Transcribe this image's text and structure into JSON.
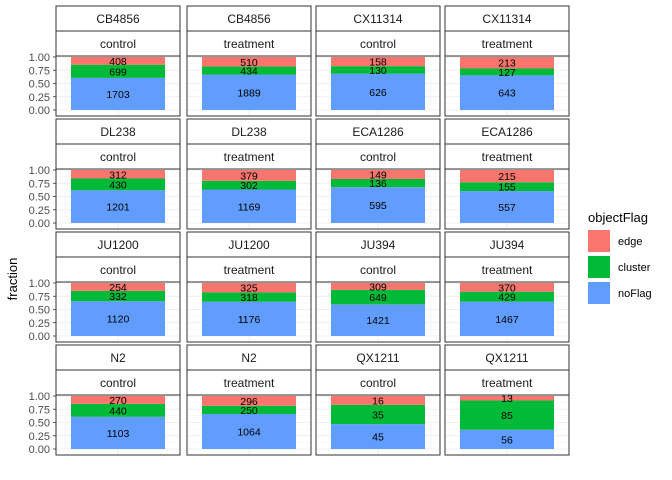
{
  "chart_data": {
    "type": "bar",
    "stacked": "fill",
    "ylabel": "fraction",
    "y_ticks": [
      "1.00",
      "0.75",
      "0.50",
      "0.25",
      "0.00"
    ],
    "ylim": [
      0,
      1
    ],
    "legend": {
      "title": "objectFlag",
      "placement": "right",
      "entries": [
        {
          "name": "edge",
          "color": "#F8766D"
        },
        {
          "name": "cluster",
          "color": "#00BA38"
        },
        {
          "name": "noFlag",
          "color": "#619CFF"
        }
      ]
    },
    "panels": [
      {
        "strain": "CB4856",
        "condition": "control",
        "noFlag": 1703,
        "cluster": 699,
        "edge": 408
      },
      {
        "strain": "CB4856",
        "condition": "treatment",
        "noFlag": 1889,
        "cluster": 434,
        "edge": 510
      },
      {
        "strain": "CX11314",
        "condition": "control",
        "noFlag": 626,
        "cluster": 130,
        "edge": 158
      },
      {
        "strain": "CX11314",
        "condition": "treatment",
        "noFlag": 643,
        "cluster": 127,
        "edge": 213
      },
      {
        "strain": "DL238",
        "condition": "control",
        "noFlag": 1201,
        "cluster": 430,
        "edge": 312
      },
      {
        "strain": "DL238",
        "condition": "treatment",
        "noFlag": 1169,
        "cluster": 302,
        "edge": 379
      },
      {
        "strain": "ECA1286",
        "condition": "control",
        "noFlag": 595,
        "cluster": 136,
        "edge": 149
      },
      {
        "strain": "ECA1286",
        "condition": "treatment",
        "noFlag": 557,
        "cluster": 155,
        "edge": 215
      },
      {
        "strain": "JU1200",
        "condition": "control",
        "noFlag": 1120,
        "cluster": 332,
        "edge": 254
      },
      {
        "strain": "JU1200",
        "condition": "treatment",
        "noFlag": 1176,
        "cluster": 318,
        "edge": 325
      },
      {
        "strain": "JU394",
        "condition": "control",
        "noFlag": 1421,
        "cluster": 649,
        "edge": 309
      },
      {
        "strain": "JU394",
        "condition": "treatment",
        "noFlag": 1467,
        "cluster": 429,
        "edge": 370
      },
      {
        "strain": "N2",
        "condition": "control",
        "noFlag": 1103,
        "cluster": 440,
        "edge": 270
      },
      {
        "strain": "N2",
        "condition": "treatment",
        "noFlag": 1064,
        "cluster": 250,
        "edge": 296
      },
      {
        "strain": "QX1211",
        "condition": "control",
        "noFlag": 45,
        "cluster": 35,
        "edge": 16
      },
      {
        "strain": "QX1211",
        "condition": "treatment",
        "noFlag": 56,
        "cluster": 85,
        "edge": 13
      }
    ]
  }
}
